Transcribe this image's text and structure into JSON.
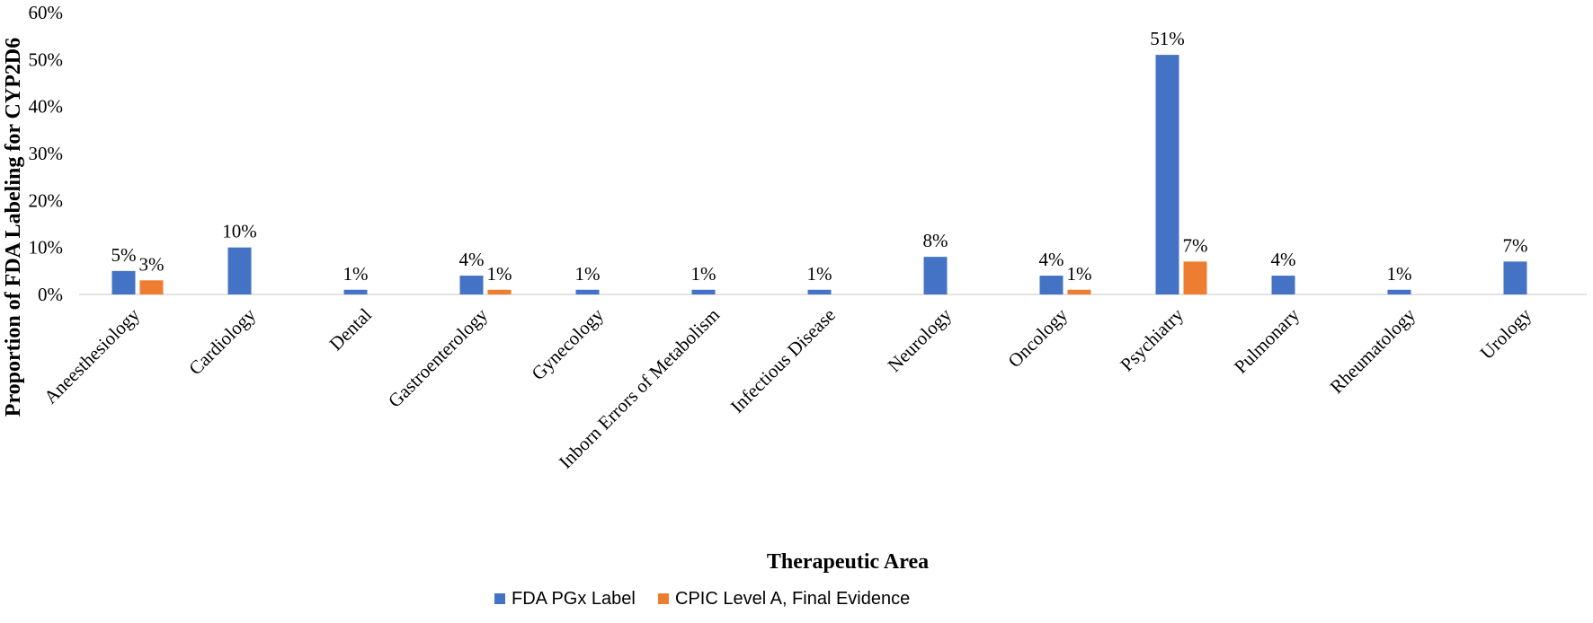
{
  "chart_data": {
    "type": "bar",
    "title": "",
    "xlabel": "Therapeutic Area",
    "ylabel": "Proportion of FDA Labeling for CYP2D6",
    "ylim": [
      0,
      60
    ],
    "yticks": [
      "0%",
      "10%",
      "20%",
      "30%",
      "40%",
      "50%",
      "60%"
    ],
    "grid": false,
    "legend_position": "bottom",
    "categories": [
      "Aneesthesiology",
      "Cardiology",
      "Dental",
      "Gastroenterology",
      "Gynecology",
      "Inborn Errors of Metabolism",
      "Infectious Disease",
      "Neurology",
      "Oncology",
      "Psychiatry",
      "Pulmonary",
      "Rheumatology",
      "Urology"
    ],
    "series": [
      {
        "name": "FDA PGx Label",
        "color": "#4472C4",
        "values": [
          5,
          10,
          1,
          4,
          1,
          1,
          1,
          8,
          4,
          51,
          4,
          1,
          7
        ],
        "labels": [
          "5%",
          "10%",
          "1%",
          "4%",
          "1%",
          "1%",
          "1%",
          "8%",
          "4%",
          "51%",
          "4%",
          "1%",
          "7%"
        ]
      },
      {
        "name": "CPIC Level A, Final Evidence",
        "color": "#ED7D31",
        "values": [
          3,
          null,
          null,
          1,
          null,
          null,
          null,
          null,
          1,
          7,
          null,
          null,
          null
        ],
        "labels": [
          "3%",
          null,
          null,
          "1%",
          null,
          null,
          null,
          null,
          "1%",
          "7%",
          null,
          null,
          null
        ]
      }
    ]
  }
}
